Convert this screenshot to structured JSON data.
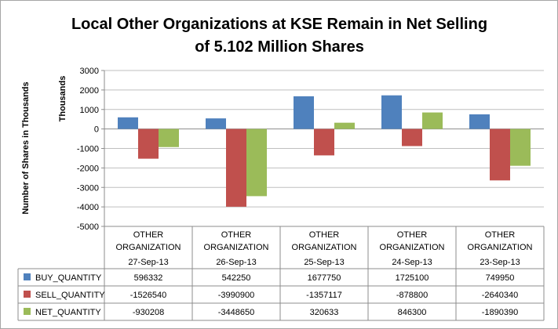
{
  "chart_data": {
    "type": "bar",
    "title": [
      "Local Other Organizations at KSE Remain in Net Selling",
      "of 5.102 Million Shares"
    ],
    "ylabel_outer": "Number of Shares in Thousands",
    "ylabel_inner": "Thousands",
    "ylim": [
      -5000,
      3000
    ],
    "yticks": [
      3000,
      2000,
      1000,
      0,
      -1000,
      -2000,
      -3000,
      -4000,
      -5000
    ],
    "category_group": "OTHER ORGANIZATION",
    "categories": [
      "27-Sep-13",
      "26-Sep-13",
      "25-Sep-13",
      "24-Sep-13",
      "23-Sep-13"
    ],
    "series": [
      {
        "name": "BUY_QUANTITY",
        "color": "#4f81bd",
        "values": [
          596332,
          542250,
          1677750,
          1725100,
          749950
        ]
      },
      {
        "name": "SELL_QUANTITY",
        "color": "#c0504d",
        "values": [
          -1526540,
          -3990900,
          -1357117,
          -878800,
          -2640340
        ]
      },
      {
        "name": "NET_QUANTITY",
        "color": "#9bbb59",
        "values": [
          -930208,
          -3448650,
          320633,
          846300,
          -1890390
        ]
      }
    ],
    "grid": true,
    "legend": "data-table-left"
  }
}
